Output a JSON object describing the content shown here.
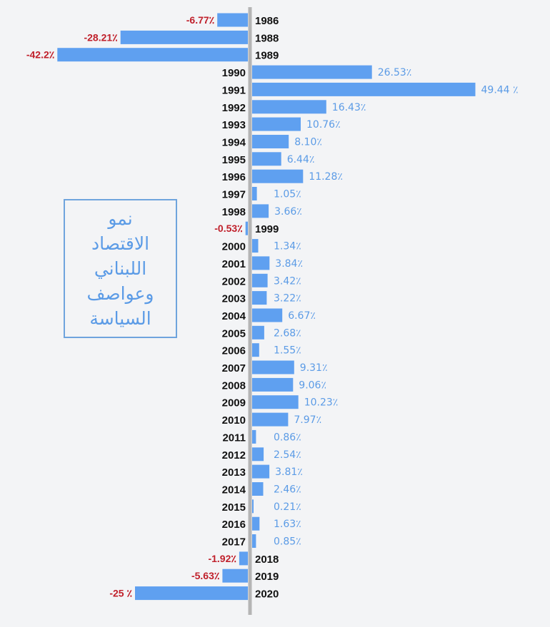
{
  "colors": {
    "bar": "#5fa0f0",
    "positive_label": "#5b9be6",
    "negative_label": "#c0202b",
    "axis": "#b5b5b5",
    "year_label": "#111111",
    "background": "#f3f4f6",
    "box_border": "#6fa4dd"
  },
  "title_box": {
    "lines": [
      "نمو",
      "الاقتصاد",
      "اللبناني",
      "وعواصف",
      "السياسة"
    ]
  },
  "chart_data": {
    "type": "bar",
    "orientation": "horizontal",
    "unit": "%",
    "categories": [
      "1986",
      "1988",
      "1989",
      "1990",
      "1991",
      "1992",
      "1993",
      "1994",
      "1995",
      "1996",
      "1997",
      "1998",
      "1999",
      "2000",
      "2001",
      "2002",
      "2003",
      "2004",
      "2005",
      "2006",
      "2007",
      "2008",
      "2009",
      "2010",
      "2011",
      "2012",
      "2013",
      "2014",
      "2015",
      "2016",
      "2017",
      "2018",
      "2019",
      "2020"
    ],
    "values": [
      -6.77,
      -28.21,
      -42.2,
      26.53,
      49.44,
      16.43,
      10.76,
      8.1,
      6.44,
      11.28,
      1.05,
      3.66,
      -0.53,
      1.34,
      3.84,
      3.42,
      3.22,
      6.67,
      2.68,
      1.55,
      9.31,
      9.06,
      10.23,
      7.97,
      0.86,
      2.54,
      3.81,
      2.46,
      0.21,
      1.63,
      0.85,
      -1.92,
      -5.63,
      -25
    ],
    "value_labels": [
      "-6.77٪",
      "-28.21٪",
      "-42.2٪",
      "26.53٪",
      "49.44 ٪",
      "16.43٪",
      "10.76٪",
      "8.10٪",
      "6.44٪",
      "11.28٪",
      "1.05٪",
      "3.66٪",
      "-0.53٪",
      "1.34٪",
      "3.84٪",
      "3.42٪",
      "3.22٪",
      "6.67٪",
      "2.68٪",
      "1.55٪",
      "9.31٪",
      "9.06٪",
      "10.23٪",
      "7.97٪",
      "0.86٪",
      "2.54٪",
      "3.81٪",
      "2.46٪",
      "0.21٪",
      "1.63٪",
      "0.85٪",
      "-1.92٪",
      "-5.63٪",
      "-25 ٪"
    ],
    "title": "",
    "xlabel": "",
    "ylabel": "",
    "grid": false,
    "legend": "none"
  }
}
